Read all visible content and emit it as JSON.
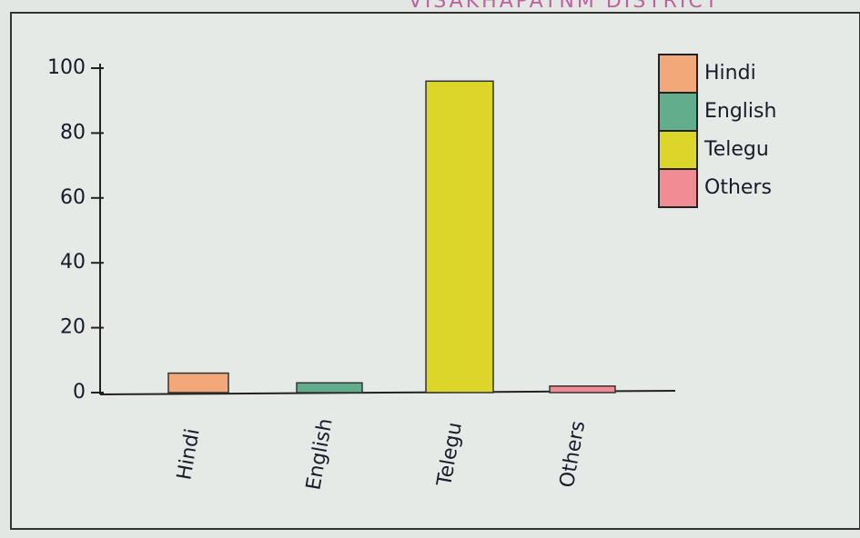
{
  "chart_data": {
    "type": "bar",
    "title": "VISAKHAPATNM DISTRICT",
    "categories": [
      "Hindi",
      "English",
      "Telegu",
      "Others"
    ],
    "values": [
      6,
      3,
      96,
      2
    ],
    "colors": [
      "#f2a878",
      "#62ae8c",
      "#dcd62a",
      "#f08c94"
    ],
    "ylim": [
      0,
      100
    ],
    "yticks": [
      0,
      20,
      40,
      60,
      80,
      100
    ],
    "legend": "top-right"
  }
}
